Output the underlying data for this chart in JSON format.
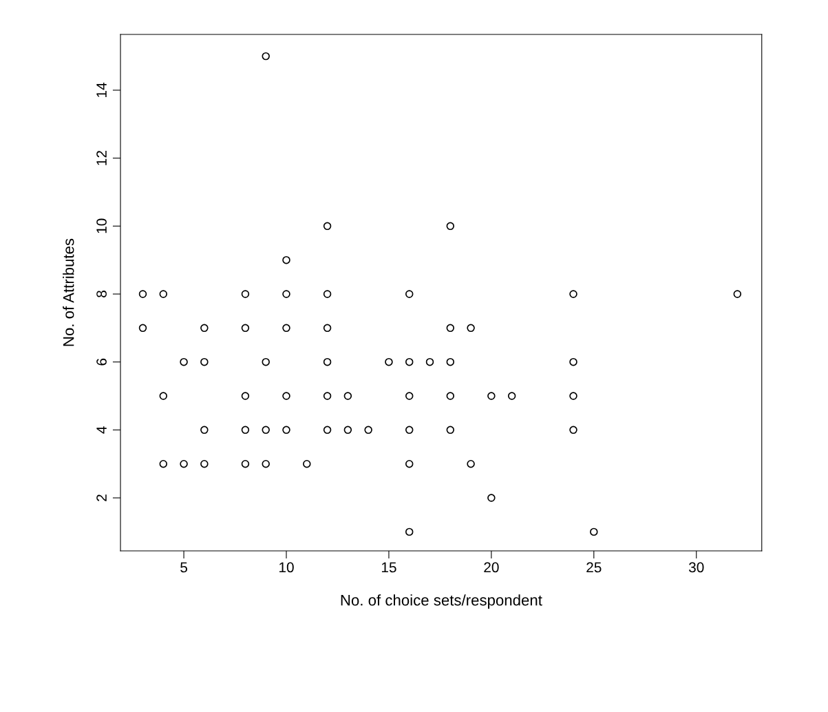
{
  "chart_data": {
    "type": "scatter",
    "xlabel": "No. of choice sets/respondent",
    "ylabel": "No. of Attributes",
    "x": [
      3,
      3,
      4,
      4,
      4,
      5,
      5,
      6,
      6,
      6,
      6,
      8,
      8,
      8,
      8,
      8,
      9,
      9,
      9,
      9,
      10,
      10,
      10,
      10,
      10,
      11,
      12,
      12,
      12,
      12,
      12,
      12,
      13,
      13,
      14,
      15,
      16,
      16,
      16,
      16,
      16,
      16,
      17,
      18,
      18,
      18,
      18,
      18,
      19,
      19,
      20,
      20,
      21,
      24,
      24,
      24,
      24,
      25,
      32
    ],
    "series": [
      {
        "color": "#000000",
        "values": [
          8,
          7,
          8,
          5,
          3,
          6,
          3,
          7,
          6,
          4,
          3,
          8,
          7,
          5,
          4,
          3,
          15,
          6,
          4,
          3,
          9,
          8,
          7,
          5,
          4,
          3,
          10,
          8,
          7,
          6,
          5,
          4,
          5,
          4,
          4,
          6,
          8,
          6,
          5,
          4,
          3,
          1,
          6,
          10,
          7,
          6,
          5,
          4,
          7,
          3,
          5,
          2,
          5,
          8,
          6,
          5,
          4,
          1,
          8
        ]
      }
    ],
    "xlim": [
      1.91,
      33.19
    ],
    "ylim": [
      0.44,
      15.64
    ],
    "xticks": [
      5,
      10,
      15,
      20,
      25,
      30
    ],
    "yticks": [
      2,
      4,
      6,
      8,
      10,
      12,
      14
    ],
    "marker": "circle",
    "grid": false,
    "legend": false
  }
}
